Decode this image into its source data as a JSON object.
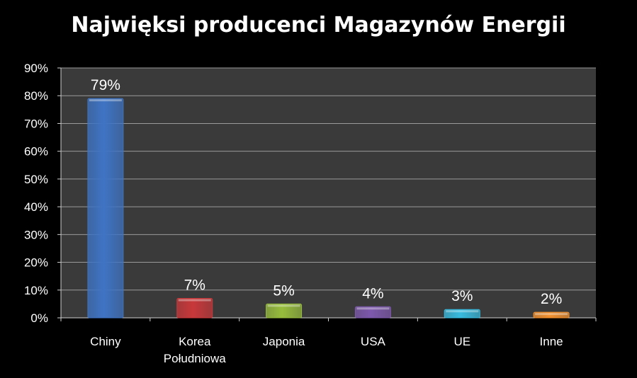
{
  "chart_data": {
    "type": "bar",
    "title": "Najwięksi producenci Magazynów Energii",
    "xlabel": "",
    "ylabel": "",
    "categories": [
      [
        "Chiny"
      ],
      [
        "Korea",
        "Południowa"
      ],
      [
        "Japonia"
      ],
      [
        "USA"
      ],
      [
        "UE"
      ],
      [
        "Inne"
      ]
    ],
    "values": [
      79,
      7,
      5,
      4,
      3,
      2
    ],
    "value_labels": [
      "79%",
      "7%",
      "5%",
      "4%",
      "3%",
      "2%"
    ],
    "ylim": [
      0,
      90
    ],
    "yticks": [
      "0%",
      "10%",
      "20%",
      "30%",
      "40%",
      "50%",
      "60%",
      "70%",
      "80%",
      "90%"
    ],
    "grid": true,
    "legend": "none",
    "colors": [
      "#3f74c4",
      "#c8383a",
      "#97bd3c",
      "#7d58ac",
      "#37bbdf",
      "#f28f2c"
    ],
    "plot_background": "#3a3a3a",
    "gridline_color": "#9a9a9a"
  }
}
